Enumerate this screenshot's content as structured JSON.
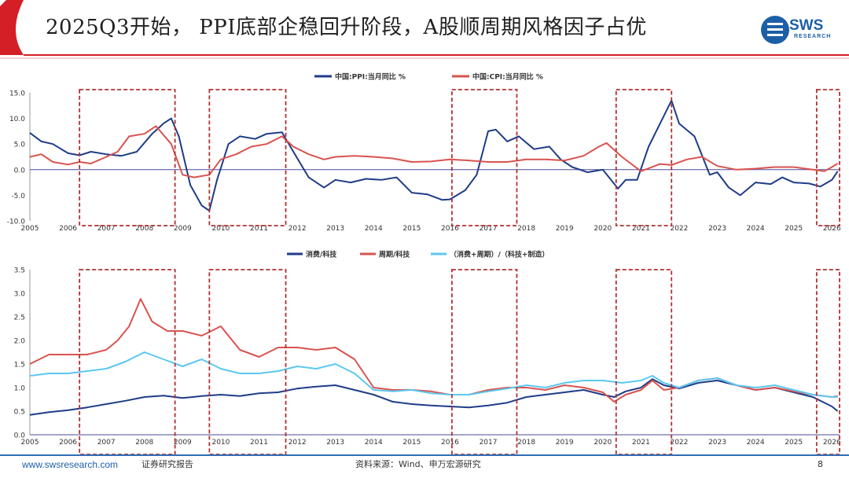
{
  "title": "2025Q3开始， PPI底部企稳回升阶段，A股顺周期风格因子占优",
  "logo": {
    "text": "SWS",
    "sub": "RESEARCH"
  },
  "footer": {
    "url": "www.swsresearch.com",
    "doc_type": "证券研究报告",
    "source": "资料来源：Wind、申万宏源研究",
    "page": "8"
  },
  "colors": {
    "navy": "#1f3c88",
    "red": "#d9534f",
    "light_blue": "#5bc8f0",
    "box": "#b03030",
    "footer": "#2f6db5"
  },
  "highlight_periods": [
    {
      "start": 2006.3,
      "end": 2008.8
    },
    {
      "start": 2009.7,
      "end": 2011.7
    },
    {
      "start": 2016.05,
      "end": 2017.75
    },
    {
      "start": 2020.35,
      "end": 2021.8
    },
    {
      "start": 2025.6,
      "end": 2026.2
    }
  ],
  "chart_data": [
    {
      "type": "line",
      "title": "",
      "xlabel": "",
      "ylabel": "",
      "xlim": [
        2005,
        2026.2
      ],
      "ylim": [
        -10,
        15
      ],
      "yticks": [
        "15.0",
        "10.0",
        "5.0",
        "0.0",
        "-5.0",
        "-10.0"
      ],
      "ytick_values": [
        15,
        10,
        5,
        0,
        -5,
        -10
      ],
      "xticks": [
        "2005",
        "2006",
        "2007",
        "2008",
        "2009",
        "2010",
        "2011",
        "2012",
        "2013",
        "2014",
        "2015",
        "2016",
        "2017",
        "2018",
        "2019",
        "2020",
        "2021",
        "2022",
        "2023",
        "2024",
        "2025",
        "2026"
      ],
      "legend": [
        "中国:PPI:当月同比 %",
        "中国:CPI:当月同比 %"
      ],
      "series": [
        {
          "name": "中国:PPI:当月同比 %",
          "color": "#1f3c88",
          "x": [
            2005,
            2005.3,
            2005.6,
            2006,
            2006.3,
            2006.6,
            2007,
            2007.4,
            2007.8,
            2008.2,
            2008.5,
            2008.7,
            2008.9,
            2009.2,
            2009.5,
            2009.7,
            2009.9,
            2010.2,
            2010.5,
            2010.9,
            2011.2,
            2011.6,
            2011.9,
            2012.3,
            2012.7,
            2013,
            2013.4,
            2013.8,
            2014.2,
            2014.6,
            2015,
            2015.4,
            2015.8,
            2016,
            2016.4,
            2016.7,
            2017,
            2017.2,
            2017.5,
            2017.8,
            2018.2,
            2018.6,
            2018.9,
            2019.2,
            2019.6,
            2020,
            2020.4,
            2020.6,
            2020.9,
            2021.2,
            2021.5,
            2021.8,
            2022,
            2022.4,
            2022.8,
            2023,
            2023.3,
            2023.6,
            2024,
            2024.4,
            2024.7,
            2025,
            2025.4,
            2025.7,
            2026,
            2026.15
          ],
          "y": [
            7.2,
            5.5,
            5.0,
            3.2,
            2.8,
            3.5,
            3.0,
            2.7,
            3.5,
            7.0,
            9.0,
            10.0,
            6.5,
            -3.0,
            -7.0,
            -8.0,
            -2.0,
            5.0,
            6.5,
            6.0,
            7.0,
            7.3,
            3.5,
            -1.5,
            -3.5,
            -2.0,
            -2.5,
            -1.8,
            -2.0,
            -1.5,
            -4.5,
            -4.8,
            -5.9,
            -5.8,
            -4.0,
            -1.0,
            7.5,
            7.8,
            5.5,
            6.5,
            4.0,
            4.5,
            2.0,
            0.5,
            -0.5,
            0.0,
            -3.7,
            -2.0,
            -2.0,
            4.5,
            9.0,
            13.5,
            9.0,
            6.5,
            -1.0,
            -0.5,
            -3.5,
            -5.0,
            -2.5,
            -2.8,
            -1.5,
            -2.5,
            -2.7,
            -3.3,
            -2.0,
            -0.3
          ]
        },
        {
          "name": "中国:CPI:当月同比 %",
          "color": "#d9534f",
          "x": [
            2005,
            2005.3,
            2005.6,
            2006,
            2006.3,
            2006.6,
            2007,
            2007.3,
            2007.6,
            2008,
            2008.3,
            2008.7,
            2009,
            2009.3,
            2009.7,
            2010,
            2010.4,
            2010.8,
            2011.2,
            2011.6,
            2011.9,
            2012.3,
            2012.7,
            2013,
            2013.5,
            2014,
            2014.5,
            2015,
            2015.5,
            2016,
            2016.5,
            2017,
            2017.5,
            2018,
            2018.5,
            2019,
            2019.5,
            2019.9,
            2020.1,
            2020.5,
            2021,
            2021.5,
            2021.8,
            2022.2,
            2022.6,
            2023,
            2023.5,
            2024,
            2024.5,
            2025,
            2025.5,
            2025.8,
            2026,
            2026.15
          ],
          "y": [
            2.5,
            3.0,
            1.5,
            1.0,
            1.5,
            1.2,
            2.5,
            3.5,
            6.5,
            7.0,
            8.5,
            5.0,
            -1.0,
            -1.5,
            -1.0,
            2.0,
            3.0,
            4.5,
            5.0,
            6.5,
            4.5,
            3.0,
            2.0,
            2.5,
            2.7,
            2.5,
            2.2,
            1.5,
            1.6,
            2.0,
            1.8,
            1.5,
            1.5,
            2.0,
            2.0,
            1.8,
            2.7,
            4.5,
            5.2,
            2.5,
            -0.3,
            1.1,
            0.9,
            2.0,
            2.5,
            0.7,
            0.0,
            0.2,
            0.5,
            0.5,
            0.0,
            -0.3,
            0.5,
            1.2
          ]
        }
      ]
    },
    {
      "type": "line",
      "title": "",
      "xlabel": "",
      "ylabel": "",
      "xlim": [
        2005,
        2026.2
      ],
      "ylim": [
        0.0,
        3.5
      ],
      "yticks": [
        "3.5",
        "3.0",
        "2.5",
        "2.0",
        "1.5",
        "1.0",
        "0.5",
        "0.0"
      ],
      "ytick_values": [
        3.5,
        3.0,
        2.5,
        2.0,
        1.5,
        1.0,
        0.5,
        0.0
      ],
      "xticks": [
        "2005",
        "2006",
        "2007",
        "2008",
        "2009",
        "2010",
        "2011",
        "2012",
        "2013",
        "2014",
        "2015",
        "2016",
        "2017",
        "2018",
        "2019",
        "2020",
        "2021",
        "2022",
        "2023",
        "2024",
        "2025",
        "2026"
      ],
      "legend": [
        "消费/科技",
        "周期/科技",
        "（消费+周期）/（科技+制造）"
      ],
      "series": [
        {
          "name": "消费/科技",
          "color": "#1f3c88",
          "x": [
            2005,
            2005.5,
            2006,
            2006.5,
            2007,
            2007.5,
            2008,
            2008.5,
            2009,
            2009.5,
            2010,
            2010.5,
            2011,
            2011.5,
            2012,
            2012.5,
            2013,
            2013.5,
            2014,
            2014.5,
            2015,
            2015.5,
            2016,
            2016.5,
            2017,
            2017.5,
            2018,
            2018.5,
            2019,
            2019.5,
            2020,
            2020.3,
            2020.6,
            2021,
            2021.3,
            2021.6,
            2022,
            2022.5,
            2023,
            2023.5,
            2024,
            2024.5,
            2025,
            2025.5,
            2026,
            2026.15
          ],
          "y": [
            0.42,
            0.48,
            0.52,
            0.58,
            0.65,
            0.72,
            0.8,
            0.83,
            0.78,
            0.82,
            0.85,
            0.82,
            0.88,
            0.9,
            0.98,
            1.02,
            1.05,
            0.95,
            0.85,
            0.7,
            0.65,
            0.62,
            0.6,
            0.58,
            0.62,
            0.68,
            0.8,
            0.85,
            0.9,
            0.95,
            0.85,
            0.8,
            0.92,
            1.0,
            1.18,
            1.05,
            0.98,
            1.1,
            1.15,
            1.05,
            0.95,
            1.0,
            0.9,
            0.8,
            0.6,
            0.5
          ]
        },
        {
          "name": "周期/科技",
          "color": "#d9534f",
          "x": [
            2005,
            2005.5,
            2006,
            2006.5,
            2007,
            2007.3,
            2007.6,
            2007.9,
            2008.2,
            2008.6,
            2009,
            2009.5,
            2010,
            2010.5,
            2011,
            2011.5,
            2012,
            2012.5,
            2013,
            2013.5,
            2014,
            2014.5,
            2015,
            2015.5,
            2016,
            2016.5,
            2017,
            2017.5,
            2018,
            2018.5,
            2019,
            2019.5,
            2020,
            2020.3,
            2020.6,
            2021,
            2021.3,
            2021.6,
            2022,
            2022.5,
            2023,
            2023.5,
            2024,
            2024.5,
            2025,
            2025.5,
            2026,
            2026.15
          ],
          "y": [
            1.5,
            1.7,
            1.7,
            1.7,
            1.8,
            2.0,
            2.3,
            2.88,
            2.4,
            2.2,
            2.2,
            2.1,
            2.3,
            1.8,
            1.65,
            1.85,
            1.85,
            1.8,
            1.85,
            1.6,
            1.0,
            0.95,
            0.95,
            0.92,
            0.85,
            0.85,
            0.95,
            1.0,
            1.0,
            0.95,
            1.05,
            1.0,
            0.9,
            0.7,
            0.85,
            0.95,
            1.15,
            0.95,
            1.0,
            1.15,
            1.2,
            1.05,
            0.95,
            1.0,
            0.92,
            0.85,
            0.8,
            0.82
          ]
        },
        {
          "name": "（消费+周期）/（科技+制造）",
          "color": "#5bc8f0",
          "x": [
            2005,
            2005.5,
            2006,
            2006.5,
            2007,
            2007.5,
            2008,
            2008.5,
            2009,
            2009.5,
            2010,
            2010.5,
            2011,
            2011.5,
            2012,
            2012.5,
            2013,
            2013.5,
            2014,
            2014.5,
            2015,
            2015.5,
            2016,
            2016.5,
            2017,
            2017.5,
            2018,
            2018.5,
            2019,
            2019.5,
            2020,
            2020.5,
            2021,
            2021.3,
            2021.6,
            2022,
            2022.5,
            2023,
            2023.5,
            2024,
            2024.5,
            2025,
            2025.5,
            2026,
            2026.15
          ],
          "y": [
            1.25,
            1.3,
            1.3,
            1.35,
            1.4,
            1.55,
            1.75,
            1.6,
            1.45,
            1.6,
            1.4,
            1.3,
            1.3,
            1.35,
            1.45,
            1.4,
            1.5,
            1.3,
            0.95,
            0.92,
            0.95,
            0.88,
            0.85,
            0.85,
            0.92,
            0.98,
            1.05,
            1.0,
            1.1,
            1.15,
            1.15,
            1.1,
            1.15,
            1.25,
            1.1,
            1.0,
            1.15,
            1.2,
            1.05,
            1.0,
            1.05,
            0.95,
            0.85,
            0.8,
            0.8
          ]
        }
      ]
    }
  ]
}
